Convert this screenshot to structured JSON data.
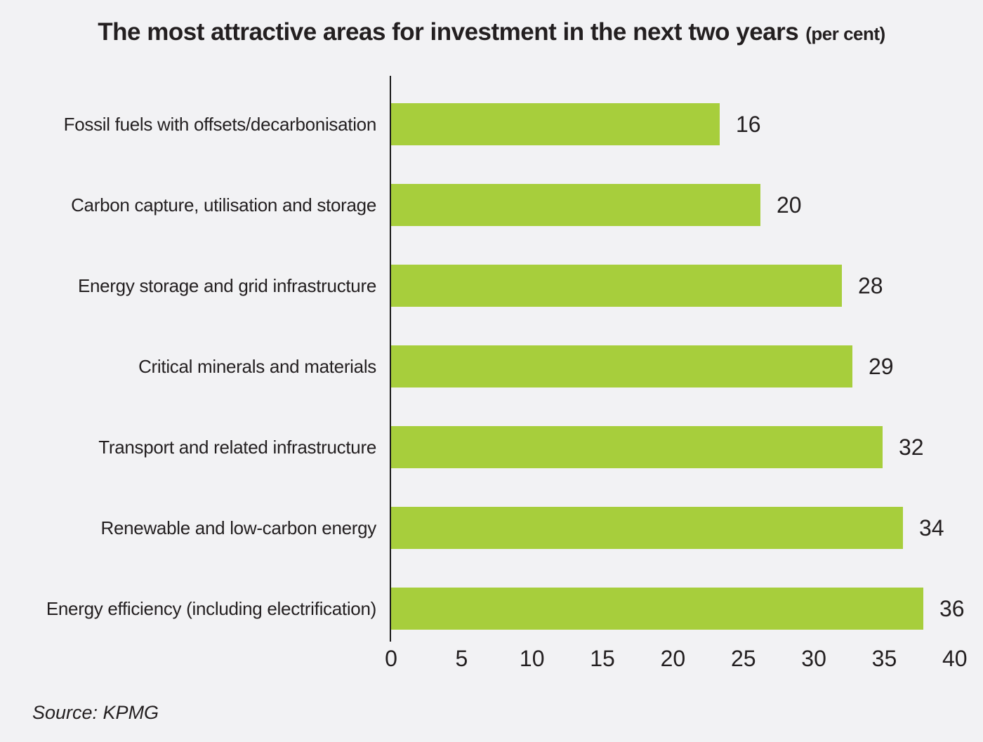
{
  "title": {
    "main": "The most attractive areas for investment in the next two years",
    "suffix": "(per cent)"
  },
  "source": "Source: KPMG",
  "colors": {
    "bar": "#a7ce3c",
    "background": "#f2f2f4",
    "text": "#231f20",
    "axis": "#1a1a1a"
  },
  "chart_data": {
    "type": "bar",
    "orientation": "horizontal",
    "title": "The most attractive areas for investment in the next two years (per cent)",
    "categories": [
      "Fossil fuels with offsets/decarbonisation",
      "Carbon capture, utilisation and storage",
      "Energy storage and grid infrastructure",
      "Critical minerals and materials",
      "Transport and related infrastructure",
      "Renewable and low-carbon energy",
      "Energy efficiency (including electrification)"
    ],
    "values": [
      16,
      20,
      28,
      29,
      32,
      34,
      36
    ],
    "value_labels_shown": true,
    "xlabel": "",
    "ylabel": "",
    "xlim": [
      0,
      40
    ],
    "xticks": [
      0,
      5,
      10,
      15,
      20,
      25,
      30,
      35,
      40
    ],
    "grid": false,
    "legend": "none",
    "source": "Source: KPMG"
  }
}
